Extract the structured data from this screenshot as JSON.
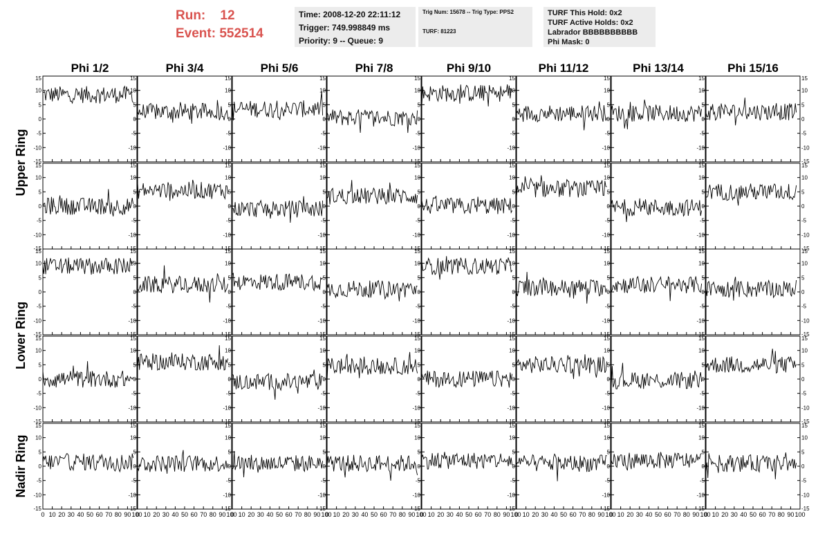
{
  "run": {
    "label": "Run:",
    "value": "12"
  },
  "event": {
    "label": "Event:",
    "value": "552514"
  },
  "time_box": {
    "time": "Time: 2008-12-20 22:11:12",
    "trigger": "Trigger: 749.998849 ms",
    "priority": "Priority: 9 -- Queue: 9"
  },
  "trig_box": {
    "trig": "Trig Num: 15678 -- Trig Type: PPS2",
    "turf": "TURF: 81223"
  },
  "turf_box": {
    "this_hold": "TURF This Hold: 0x2",
    "active_holds": "TURF Active Holds: 0x2",
    "labrador": "Labrador BBBBBBBBBB",
    "phi_mask": "Phi Mask: 0"
  },
  "colors": {
    "run_text": "#d9534f",
    "info_bg": "#ececec",
    "trace": "#000000"
  },
  "chart_data": {
    "type": "line",
    "columns": [
      "Phi 1/2",
      "Phi 3/4",
      "Phi 5/6",
      "Phi 7/8",
      "Phi 9/10",
      "Phi 11/12",
      "Phi 13/14",
      "Phi 15/16"
    ],
    "ring_labels": [
      "Upper Ring",
      "Lower Ring",
      "Nadir Ring"
    ],
    "rows_per_ring": [
      2,
      2,
      1
    ],
    "xlim": [
      0,
      100
    ],
    "ylim": [
      -15,
      15
    ],
    "x_ticks": [
      "0",
      "10",
      "20",
      "30",
      "40",
      "50",
      "60",
      "70",
      "80",
      "90",
      "100"
    ],
    "y_ticks": [
      "-15",
      "-10",
      "-5",
      "0",
      "5",
      "10",
      "15"
    ],
    "samples_per_trace": 96,
    "trace_baselines": [
      [
        8.5,
        2.5,
        3.5,
        0.5,
        9.0,
        2.0,
        2.0,
        2.5
      ],
      [
        0.0,
        5.5,
        -1.0,
        3.5,
        0.0,
        6.0,
        -0.5,
        5.0
      ],
      [
        9.0,
        2.5,
        3.5,
        1.0,
        9.0,
        1.5,
        2.5,
        1.0
      ],
      [
        0.0,
        6.0,
        -1.0,
        4.5,
        0.0,
        5.0,
        -0.5,
        5.0
      ],
      [
        1.5,
        1.0,
        1.0,
        1.0,
        2.0,
        1.0,
        2.0,
        1.0
      ]
    ],
    "trace_amplitude": 3.0
  }
}
